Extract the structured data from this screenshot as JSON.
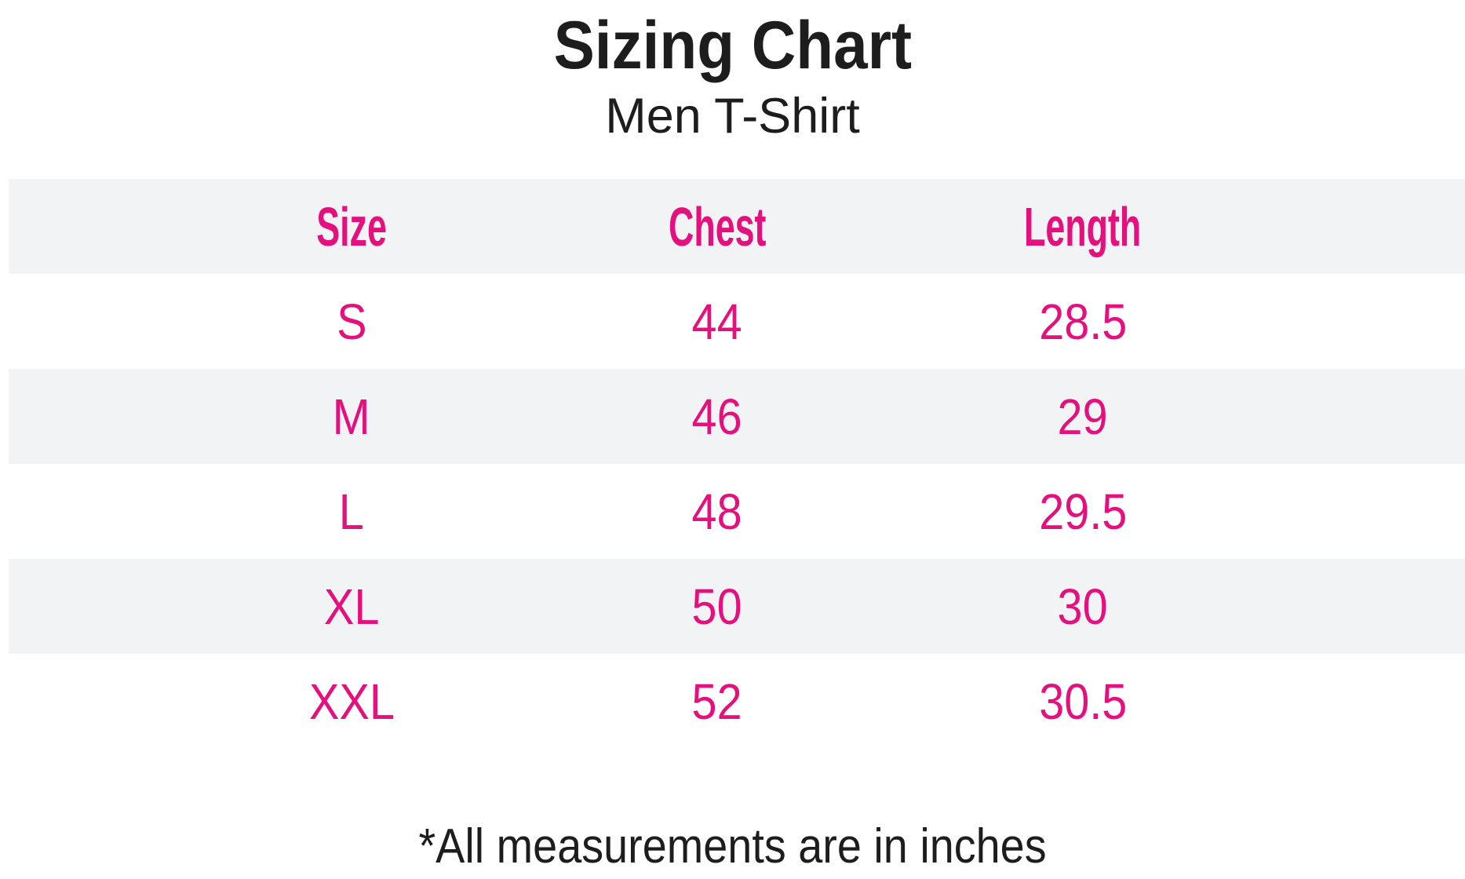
{
  "page": {
    "title": "Sizing Chart",
    "subtitle": "Men T-Shirt",
    "footnote": "*All measurements are in inches"
  },
  "colors": {
    "accent_pink": "#e3107e",
    "row_stripe_gray": "#f2f3f5",
    "text_black": "#1d1d1d",
    "background": "#ffffff"
  },
  "chart_data": {
    "type": "table",
    "title": "Sizing Chart",
    "subtitle": "Men T-Shirt",
    "columns": [
      "Size",
      "Chest",
      "Length"
    ],
    "rows": [
      {
        "size": "S",
        "chest": "44",
        "length": "28.5"
      },
      {
        "size": "M",
        "chest": "46",
        "length": "29"
      },
      {
        "size": "L",
        "chest": "48",
        "length": "29.5"
      },
      {
        "size": "XL",
        "chest": "50",
        "length": "30"
      },
      {
        "size": "XXL",
        "chest": "52",
        "length": "30.5"
      }
    ],
    "units": "inches",
    "footnote": "*All measurements are in inches",
    "layout": {
      "striped_rows": [
        "header",
        "M",
        "XL"
      ],
      "stripe_color": "#f2f3f5",
      "accent_color": "#e3107e",
      "legend": "none",
      "grid": "off"
    }
  }
}
